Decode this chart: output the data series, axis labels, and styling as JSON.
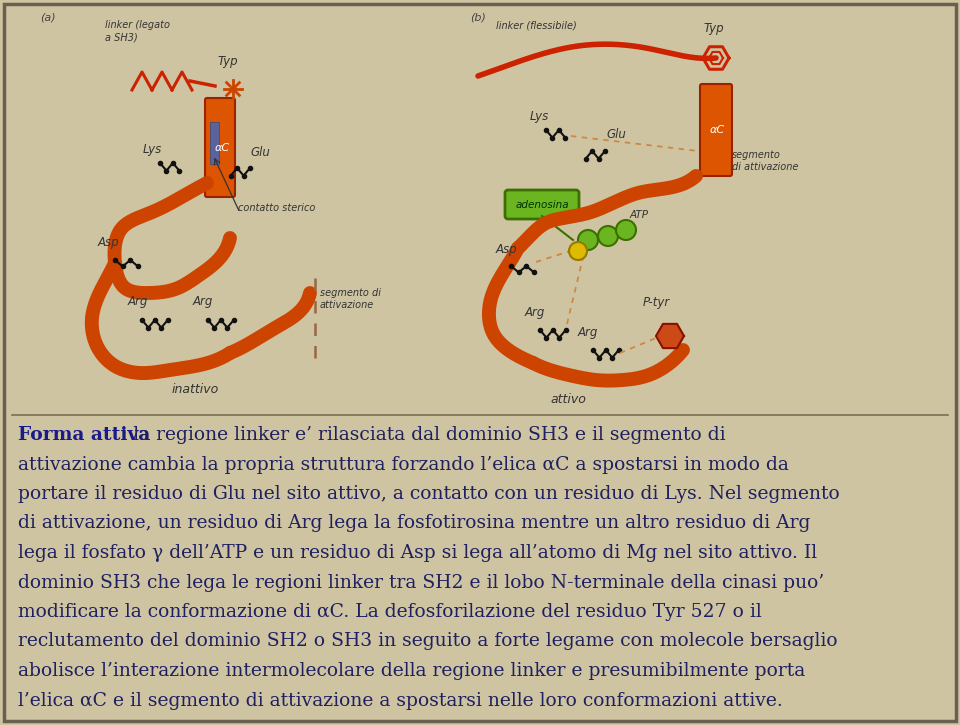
{
  "bg_color": "#cfc4a2",
  "border_color": "#7a6e56",
  "title_text": "Forma attiva",
  "title_color": "#1a1a8c",
  "body_text_color": "#1e2060",
  "body_lines": [
    ": la regione linker e’ rilasciata dal dominio SH3 e il segmento di",
    "attivazione cambia la propria struttura forzando l’elica αC a spostarsi in modo da",
    "portare il residuo di Glu nel sito attivo, a contatto con un residuo di Lys. Nel segmento",
    "di attivazione, un residuo di Arg lega la fosfotirosina mentre un altro residuo di Arg",
    "lega il fosfato γ dell’ATP e un residuo di Asp si lega all’atomo di Mg nel sito attivo. Il",
    "dominio SH3 che lega le regioni linker tra SH2 e il lobo N-terminale della cinasi puo’",
    "modificare la conformazione di αC. La defosforilazione del residuo Tyr 527 o il",
    "reclutamento del dominio SH2 o SH3 in seguito a forte legame con molecole bersaglio",
    "abolisce l’interazione intermolecolare della regione linker e presumibilmente porta",
    "l’elica αC e il segmento di attivazione a spostarsi nelle loro conformazioni attive."
  ],
  "panel_a_label": "(a)",
  "panel_b_label": "(b)",
  "orange_color": "#cc4400",
  "dark_red": "#cc2200",
  "green_fill": "#6ab520",
  "green_edge": "#3a7000",
  "black_color": "#111111",
  "blue_bar_color": "#4466aa",
  "gold_color": "#ccaa00",
  "text_font_size": 13.5,
  "label_font_size": 8.5,
  "fig_width": 9.6,
  "fig_height": 7.25,
  "dpi": 100
}
